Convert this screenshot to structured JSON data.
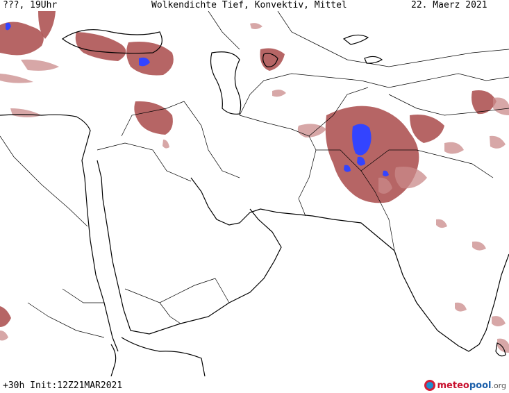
{
  "header": {
    "left_label": "???, 19Uhr",
    "title": "Wolkendichte   Tief, Konvektiv, Mittel",
    "date": "22. Maerz 2021"
  },
  "footer": {
    "run_info": "+30h  Init:12Z21MAR2021",
    "logo_part1": "meteo",
    "logo_part2": "pool",
    "logo_part3": ".org"
  },
  "colors": {
    "cloud": "#a94a4a",
    "cloud_light": "#c98a8a",
    "convective": "#3344ff",
    "coastline": "#000000",
    "background": "#ffffff"
  }
}
